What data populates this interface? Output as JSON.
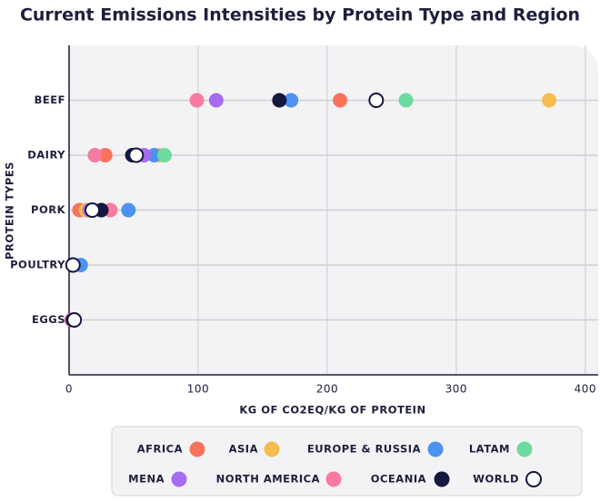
{
  "chart_data": {
    "type": "dot",
    "title": "Current Emissions Intensities by Protein Type and Region",
    "x_label": "KG OF CO2EQ/KG OF PROTEIN",
    "y_label": "PROTEIN TYPES",
    "categories": [
      "BEEF",
      "DAIRY",
      "PORK",
      "POULTRY",
      "EGGS"
    ],
    "xlim": [
      0,
      410
    ],
    "xticks": [
      0,
      100,
      200,
      300,
      400
    ],
    "grid": true,
    "series": [
      {
        "name": "AFRICA",
        "color": "#f9735b",
        "values": [
          210,
          28,
          8,
          3,
          2
        ]
      },
      {
        "name": "ASIA",
        "color": "#f5bd4f",
        "values": [
          372,
          70,
          13,
          3,
          4
        ]
      },
      {
        "name": "EUROPE & RUSSIA",
        "color": "#4c93f0",
        "values": [
          172,
          66,
          46,
          9,
          4
        ]
      },
      {
        "name": "LATAM",
        "color": "#6ddb9f",
        "values": [
          261,
          74,
          17,
          3,
          3
        ]
      },
      {
        "name": "MENA",
        "color": "#a66cf0",
        "values": [
          114,
          58,
          16,
          3,
          2
        ]
      },
      {
        "name": "NORTH AMERICA",
        "color": "#f77ba1",
        "values": [
          99,
          20,
          32,
          3,
          2
        ]
      },
      {
        "name": "OCEANIA",
        "color": "#141741",
        "values": [
          163,
          49,
          25,
          3,
          3
        ]
      },
      {
        "name": "WORLD",
        "color": "#ffffff",
        "values": [
          238,
          52,
          18,
          3,
          4
        ]
      }
    ]
  }
}
